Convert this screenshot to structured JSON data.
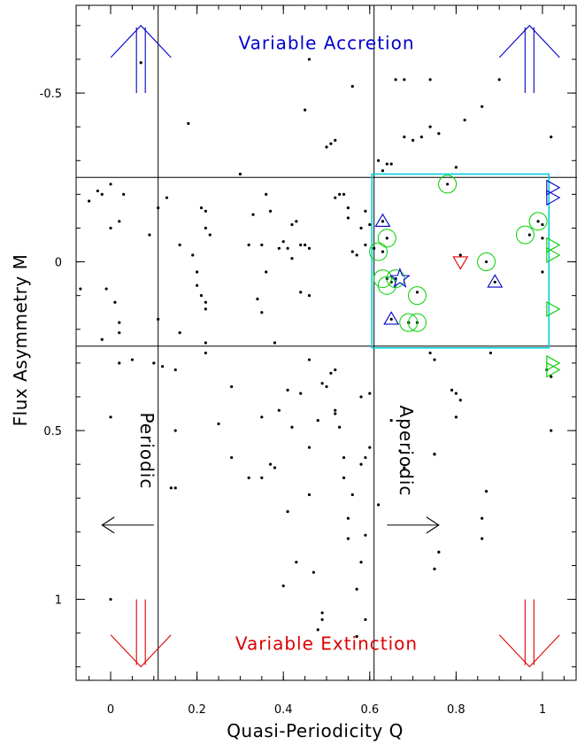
{
  "chart_data": {
    "type": "scatter",
    "title": "",
    "xlabel": "Quasi-Periodicity Q",
    "ylabel": "Flux Asymmetry M",
    "xlim": [
      -0.08,
      1.08
    ],
    "ylim": [
      -0.76,
      1.24
    ],
    "y_inverted": true,
    "x_ticks": [
      {
        "v": 0,
        "label": "0"
      },
      {
        "v": 0.2,
        "label": "0.2"
      },
      {
        "v": 0.4,
        "label": "0.4"
      },
      {
        "v": 0.6,
        "label": "0.6"
      },
      {
        "v": 0.8,
        "label": "0.8"
      },
      {
        "v": 1,
        "label": "1"
      }
    ],
    "y_ticks": [
      {
        "v": -0.5,
        "label": "-0.5"
      },
      {
        "v": 0,
        "label": "0"
      },
      {
        "v": 0.5,
        "label": "0.5"
      },
      {
        "v": 1,
        "label": "1"
      }
    ],
    "x_minor_step": 0.05,
    "y_minor_step": 0.1,
    "grid": false,
    "boundaries": {
      "q_vlines": [
        0.11,
        0.61
      ],
      "m_hlines": [
        -0.25,
        0.25
      ]
    },
    "highlight_box": {
      "q": [
        0.605,
        1.015
      ],
      "m": [
        -0.26,
        0.255
      ],
      "color": "#00d0d8"
    },
    "annotations": [
      {
        "name": "variable-accretion",
        "text": "Variable Accretion",
        "q": 0.5,
        "m": -0.63,
        "color": "#0000cc"
      },
      {
        "name": "variable-extinction",
        "text": "Variable Extinction",
        "q": 0.5,
        "m": 1.15,
        "color": "#dd0000"
      },
      {
        "name": "periodic",
        "text": "Periodic",
        "q": 0.07,
        "m": 0.56,
        "color": "#000000",
        "rotate": 90
      },
      {
        "name": "aperiodic",
        "text": "Aperiodic",
        "q": 0.67,
        "m": 0.56,
        "color": "#000000",
        "rotate": 90
      }
    ],
    "arrows": [
      {
        "name": "accretion-arrow-left",
        "q": 0.07,
        "m_tail": -0.5,
        "m_head": -0.7,
        "color": "#0000cc"
      },
      {
        "name": "accretion-arrow-right",
        "q": 0.97,
        "m_tail": -0.5,
        "m_head": -0.7,
        "color": "#0000cc"
      },
      {
        "name": "extinction-arrow-left",
        "q": 0.07,
        "m_tail": 1.0,
        "m_head": 1.2,
        "color": "#dd0000"
      },
      {
        "name": "extinction-arrow-right",
        "q": 0.97,
        "m_tail": 1.0,
        "m_head": 1.2,
        "color": "#dd0000"
      },
      {
        "name": "periodic-arrow",
        "q_tail": 0.1,
        "q_head": -0.02,
        "m": 0.78,
        "color": "#000000"
      },
      {
        "name": "aperiodic-arrow",
        "q_tail": 0.64,
        "q_head": 0.76,
        "m": 0.78,
        "color": "#000000"
      }
    ],
    "points": [
      [
        0.07,
        -0.59
      ],
      [
        0.46,
        -0.6
      ],
      [
        0.56,
        -0.52
      ],
      [
        0.66,
        -0.54
      ],
      [
        0.68,
        -0.54
      ],
      [
        0.74,
        -0.54
      ],
      [
        0.9,
        -0.54
      ],
      [
        0.86,
        -0.46
      ],
      [
        0.82,
        -0.42
      ],
      [
        0.74,
        -0.4
      ],
      [
        0.52,
        -0.36
      ],
      [
        0.51,
        -0.35
      ],
      [
        0.5,
        -0.34
      ],
      [
        0.68,
        -0.37
      ],
      [
        0.72,
        -0.37
      ],
      [
        0.76,
        -0.38
      ],
      [
        0.7,
        -0.36
      ],
      [
        0.45,
        -0.45
      ],
      [
        0.18,
        -0.41
      ],
      [
        1.02,
        -0.37
      ],
      [
        0.63,
        -0.27
      ],
      [
        0.64,
        -0.29
      ],
      [
        0.65,
        -0.29
      ],
      [
        0.62,
        -0.3
      ],
      [
        0.8,
        -0.28
      ],
      [
        0.3,
        -0.26
      ],
      [
        -0.05,
        -0.18
      ],
      [
        -0.03,
        -0.21
      ],
      [
        -0.02,
        -0.2
      ],
      [
        0.0,
        -0.23
      ],
      [
        0.02,
        -0.12
      ],
      [
        0.03,
        -0.2
      ],
      [
        0.11,
        -0.16
      ],
      [
        0.13,
        -0.19
      ],
      [
        0.21,
        -0.16
      ],
      [
        0.22,
        -0.15
      ],
      [
        0.23,
        -0.08
      ],
      [
        0.16,
        -0.05
      ],
      [
        0.19,
        -0.02
      ],
      [
        0.2,
        0.03
      ],
      [
        0.22,
        -0.1
      ],
      [
        0.2,
        0.07
      ],
      [
        0.22,
        0.12
      ],
      [
        0.22,
        0.14
      ],
      [
        0.21,
        0.1
      ],
      [
        0.36,
        -0.2
      ],
      [
        0.37,
        -0.15
      ],
      [
        0.4,
        -0.06
      ],
      [
        0.42,
        -0.11
      ],
      [
        0.43,
        -0.12
      ],
      [
        0.44,
        -0.05
      ],
      [
        0.45,
        -0.05
      ],
      [
        0.46,
        -0.04
      ],
      [
        0.42,
        -0.01
      ],
      [
        0.39,
        -0.04
      ],
      [
        0.41,
        -0.04
      ],
      [
        0.35,
        -0.05
      ],
      [
        0.33,
        -0.14
      ],
      [
        0.32,
        -0.05
      ],
      [
        0.53,
        -0.2
      ],
      [
        0.54,
        -0.2
      ],
      [
        0.55,
        -0.13
      ],
      [
        0.56,
        -0.03
      ],
      [
        0.55,
        -0.16
      ],
      [
        0.57,
        -0.02
      ],
      [
        0.58,
        -0.1
      ],
      [
        0.59,
        -0.15
      ],
      [
        0.59,
        -0.05
      ],
      [
        0.52,
        -0.19
      ],
      [
        0.6,
        -0.11
      ],
      [
        0.44,
        0.09
      ],
      [
        0.46,
        0.1
      ],
      [
        0.35,
        0.15
      ],
      [
        0.36,
        0.03
      ],
      [
        0.38,
        0.24
      ],
      [
        0.34,
        0.11
      ],
      [
        -0.01,
        0.08
      ],
      [
        0.01,
        0.12
      ],
      [
        -0.07,
        0.08
      ],
      [
        0.02,
        0.18
      ],
      [
        0.11,
        0.17
      ],
      [
        0.16,
        0.21
      ],
      [
        0.22,
        0.24
      ],
      [
        0.15,
        0.32
      ],
      [
        0.1,
        0.3
      ],
      [
        0.12,
        0.31
      ],
      [
        0.15,
        0.5
      ],
      [
        0.14,
        0.67
      ],
      [
        0.15,
        0.67
      ],
      [
        0.02,
        0.3
      ],
      [
        0.0,
        0.46
      ],
      [
        0.25,
        0.48
      ],
      [
        0.28,
        0.58
      ],
      [
        0.32,
        0.64
      ],
      [
        0.35,
        0.64
      ],
      [
        0.37,
        0.6
      ],
      [
        0.38,
        0.61
      ],
      [
        0.41,
        0.74
      ],
      [
        0.35,
        0.46
      ],
      [
        0.39,
        0.44
      ],
      [
        0.41,
        0.38
      ],
      [
        0.44,
        0.39
      ],
      [
        0.46,
        0.29
      ],
      [
        0.48,
        0.47
      ],
      [
        0.46,
        0.55
      ],
      [
        0.49,
        0.36
      ],
      [
        0.5,
        0.37
      ],
      [
        0.51,
        0.33
      ],
      [
        0.52,
        0.32
      ],
      [
        0.52,
        0.45
      ],
      [
        0.52,
        0.44
      ],
      [
        0.53,
        0.49
      ],
      [
        0.54,
        0.58
      ],
      [
        0.54,
        0.64
      ],
      [
        0.55,
        0.76
      ],
      [
        0.55,
        0.82
      ],
      [
        0.56,
        0.69
      ],
      [
        0.58,
        0.4
      ],
      [
        0.58,
        0.6
      ],
      [
        0.59,
        0.58
      ],
      [
        0.59,
        0.81
      ],
      [
        0.6,
        0.39
      ],
      [
        0.58,
        0.89
      ],
      [
        0.57,
        0.97
      ],
      [
        0.59,
        1.06
      ],
      [
        0.57,
        1.11
      ],
      [
        0.49,
        1.04
      ],
      [
        0.49,
        1.06
      ],
      [
        0.48,
        1.09
      ],
      [
        0.47,
        0.92
      ],
      [
        0.43,
        0.89
      ],
      [
        0.4,
        0.96
      ],
      [
        0.46,
        0.69
      ],
      [
        0.42,
        0.49
      ],
      [
        0.6,
        0.55
      ],
      [
        0.62,
        0.72
      ],
      [
        0.67,
        0.56
      ],
      [
        0.68,
        0.61
      ],
      [
        0.65,
        0.47
      ],
      [
        0.74,
        0.27
      ],
      [
        0.75,
        0.29
      ],
      [
        0.79,
        0.38
      ],
      [
        0.8,
        0.39
      ],
      [
        0.81,
        0.41
      ],
      [
        0.8,
        0.46
      ],
      [
        0.75,
        0.57
      ],
      [
        0.75,
        0.57
      ],
      [
        0.75,
        0.91
      ],
      [
        0.76,
        0.86
      ],
      [
        0.87,
        0.68
      ],
      [
        0.86,
        0.76
      ],
      [
        0.86,
        0.82
      ],
      [
        0.88,
        0.27
      ],
      [
        1.01,
        0.32
      ],
      [
        1.02,
        0.34
      ],
      [
        1.02,
        0.5
      ],
      [
        0.0,
        1.0
      ],
      [
        0.09,
        -0.08
      ],
      [
        0.0,
        -0.1
      ],
      [
        -0.02,
        0.23
      ],
      [
        0.28,
        0.37
      ],
      [
        0.22,
        0.27
      ],
      [
        0.05,
        0.29
      ],
      [
        0.02,
        0.21
      ],
      [
        0.78,
        -0.23
      ],
      [
        0.99,
        -0.12
      ],
      [
        0.97,
        -0.08
      ],
      [
        0.87,
        0.0
      ],
      [
        0.64,
        -0.07
      ],
      [
        0.63,
        -0.03
      ],
      [
        0.64,
        0.05
      ],
      [
        0.65,
        0.06
      ],
      [
        0.66,
        0.05
      ],
      [
        0.71,
        0.09
      ],
      [
        0.69,
        0.18
      ],
      [
        0.71,
        0.18
      ],
      [
        1.0,
        -0.11
      ],
      [
        1.0,
        -0.07
      ],
      [
        1.0,
        0.03
      ],
      [
        0.81,
        -0.02
      ],
      [
        0.89,
        0.06
      ],
      [
        0.63,
        -0.12
      ],
      [
        0.65,
        0.17
      ],
      [
        0.61,
        -0.04
      ]
    ],
    "circled": [
      [
        0.78,
        -0.23
      ],
      [
        0.99,
        -0.12
      ],
      [
        0.96,
        -0.08
      ],
      [
        0.87,
        0.0
      ],
      [
        0.64,
        -0.07
      ],
      [
        0.62,
        -0.03
      ],
      [
        0.63,
        0.05
      ],
      [
        0.64,
        0.07
      ],
      [
        0.66,
        0.05
      ],
      [
        0.71,
        0.1
      ],
      [
        0.69,
        0.18
      ],
      [
        0.71,
        0.18
      ]
    ],
    "markers": [
      {
        "shape": "triangle-up",
        "q": 0.63,
        "m": -0.12,
        "color": "#0000cc"
      },
      {
        "shape": "triangle-up",
        "q": 0.89,
        "m": 0.06,
        "color": "#0000cc"
      },
      {
        "shape": "triangle-up",
        "q": 0.65,
        "m": 0.17,
        "color": "#0000cc"
      },
      {
        "shape": "star",
        "q": 0.67,
        "m": 0.05,
        "color": "#0000cc"
      },
      {
        "shape": "triangle-down",
        "q": 0.81,
        "m": 0.0,
        "color": "#dd0000"
      },
      {
        "shape": "triangle-right",
        "q": 1.01,
        "m": -0.22,
        "color": "#0000cc"
      },
      {
        "shape": "triangle-right",
        "q": 1.01,
        "m": -0.19,
        "color": "#0000cc"
      },
      {
        "shape": "triangle-right",
        "q": 1.01,
        "m": -0.05,
        "color": "#00cc00"
      },
      {
        "shape": "triangle-right",
        "q": 1.01,
        "m": -0.02,
        "color": "#00cc00"
      },
      {
        "shape": "triangle-right",
        "q": 1.01,
        "m": 0.14,
        "color": "#00cc00"
      },
      {
        "shape": "triangle-right",
        "q": 1.01,
        "m": 0.3,
        "color": "#00cc00"
      },
      {
        "shape": "triangle-right",
        "q": 1.01,
        "m": 0.32,
        "color": "#00cc00"
      }
    ]
  }
}
